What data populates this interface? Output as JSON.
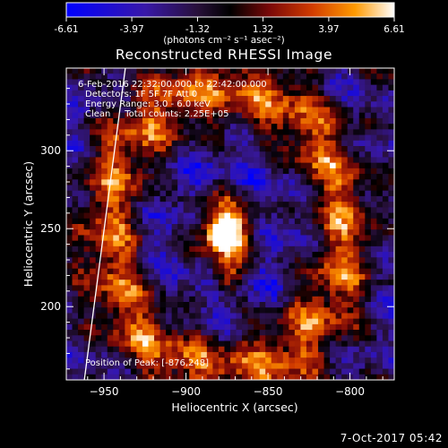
{
  "colorbar": {
    "ticks": [
      "-6.61",
      "-3.97",
      "-1.32",
      "1.32",
      "3.97",
      "6.61"
    ],
    "tick_values": [
      -6.61,
      -3.97,
      -1.32,
      1.32,
      3.97,
      6.61
    ],
    "min": -6.61,
    "max": 6.61,
    "unit_label": "(photons cm⁻² s⁻¹ asec⁻²)"
  },
  "chart_data": {
    "type": "heatmap",
    "title": "Reconstructed RHESSI Image",
    "xlabel": "Heliocentric X (arcsec)",
    "ylabel": "Heliocentric Y (arcsec)",
    "xlim": [
      -973,
      -773
    ],
    "ylim": [
      153,
      353
    ],
    "xticks": [
      -950,
      -900,
      -850,
      -800
    ],
    "yticks": [
      200,
      250,
      300
    ],
    "peak": {
      "x": -876,
      "y": 248
    },
    "secondary_peak": {
      "x": -876,
      "y": 218
    },
    "limb_line": {
      "x1": -962,
      "y1": 153,
      "x2": -937,
      "y2": 353
    },
    "colormap": [
      "#0000ff",
      "#2a1f9e",
      "#000000",
      "#5a1a5a",
      "#9e1a1a",
      "#e8500a",
      "#ffb000",
      "#ffffff"
    ],
    "annotations": [
      "6-Feb-2016 22:32:00.000 to 22:42:00.000",
      "Detectors: 1F 5F 7F Att 0",
      "Energy Range: 3.0 - 6.0 keV",
      "Clean     Total counts: 2.25E+05"
    ],
    "peak_label": "Position of Peak: [-876,248]"
  },
  "footer": {
    "timestamp": "7-Oct-2017 05:42"
  }
}
